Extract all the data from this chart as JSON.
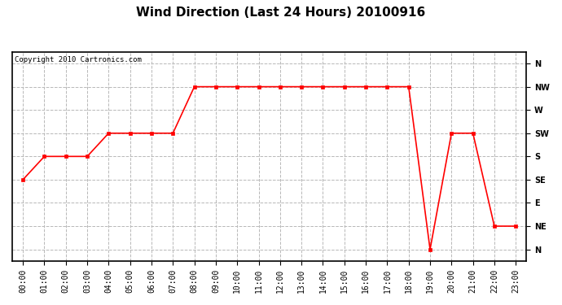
{
  "title": "Wind Direction (Last 24 Hours) 20100916",
  "copyright_text": "Copyright 2010 Cartronics.com",
  "x_labels": [
    "00:00",
    "01:00",
    "02:00",
    "03:00",
    "04:00",
    "05:00",
    "06:00",
    "07:00",
    "08:00",
    "09:00",
    "10:00",
    "11:00",
    "12:00",
    "13:00",
    "14:00",
    "15:00",
    "16:00",
    "17:00",
    "18:00",
    "19:00",
    "20:00",
    "21:00",
    "22:00",
    "23:00"
  ],
  "y_ticks": [
    8,
    7,
    6,
    5,
    4,
    3,
    2,
    1,
    0
  ],
  "y_labels": [
    "N",
    "NW",
    "W",
    "SW",
    "S",
    "SE",
    "E",
    "NE",
    "N"
  ],
  "data_points": [
    3,
    4,
    4,
    4,
    5,
    5,
    5,
    5,
    7,
    7,
    7,
    7,
    7,
    7,
    7,
    7,
    7,
    7,
    7,
    0,
    5,
    5,
    1,
    1
  ],
  "line_color": "#ff0000",
  "marker": "s",
  "marker_size": 3,
  "bg_color": "#ffffff",
  "plot_bg_color": "#ffffff",
  "grid_color": "#b8b8b8",
  "grid_style": "--",
  "title_fontsize": 11,
  "tick_fontsize": 7,
  "border_color": "#000000",
  "figsize": [
    6.9,
    3.75
  ],
  "dpi": 100
}
